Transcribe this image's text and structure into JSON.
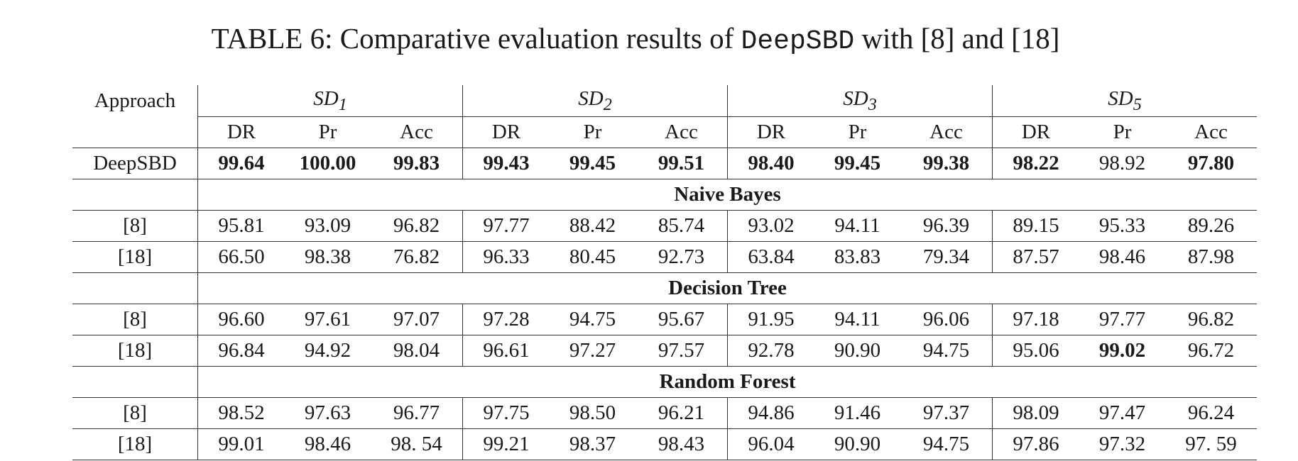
{
  "caption": {
    "prefix": "TABLE 6: Comparative evaluation results of",
    "mono": "DeepSBD",
    "suffix": "with [8] and [18]"
  },
  "header": {
    "approach": "Approach",
    "groups": [
      {
        "base": "SD",
        "sub": "1"
      },
      {
        "base": "SD",
        "sub": "2"
      },
      {
        "base": "SD",
        "sub": "3"
      },
      {
        "base": "SD",
        "sub": "5"
      }
    ],
    "metrics": [
      "DR",
      "Pr",
      "Acc"
    ]
  },
  "deepsbd": {
    "label": "DeepSBD",
    "values": [
      "99.64",
      "100.00",
      "99.83",
      "99.43",
      "99.45",
      "99.51",
      "98.40",
      "99.45",
      "99.38",
      "98.22",
      "98.92",
      "97.80"
    ],
    "bold": [
      true,
      true,
      true,
      true,
      true,
      true,
      true,
      true,
      true,
      true,
      false,
      true
    ]
  },
  "sections": [
    {
      "title": "Naive Bayes",
      "rows": [
        {
          "label": "[8]",
          "values": [
            "95.81",
            "93.09",
            "96.82",
            "97.77",
            "88.42",
            "85.74",
            "93.02",
            "94.11",
            "96.39",
            "89.15",
            "95.33",
            "89.26"
          ]
        },
        {
          "label": "[18]",
          "values": [
            "66.50",
            "98.38",
            "76.82",
            "96.33",
            "80.45",
            "92.73",
            "63.84",
            "83.83",
            "79.34",
            "87.57",
            "98.46",
            "87.98"
          ]
        }
      ]
    },
    {
      "title": "Decision Tree",
      "rows": [
        {
          "label": "[8]",
          "values": [
            "96.60",
            "97.61",
            "97.07",
            "97.28",
            "94.75",
            "95.67",
            "91.95",
            "94.11",
            "96.06",
            "97.18",
            "97.77",
            "96.82"
          ]
        },
        {
          "label": "[18]",
          "values": [
            "96.84",
            "94.92",
            "98.04",
            "96.61",
            "97.27",
            "97.57",
            "92.78",
            "90.90",
            "94.75",
            "95.06",
            "99.02",
            "96.72"
          ]
        }
      ]
    },
    {
      "title": "Random Forest",
      "rows": [
        {
          "label": "[8]",
          "values": [
            "98.52",
            "97.63",
            "96.77",
            "97.75",
            "98.50",
            "96.21",
            "94.86",
            "91.46",
            "97.37",
            "98.09",
            "97.47",
            "96.24"
          ]
        },
        {
          "label": "[18]",
          "values": [
            "99.01",
            "98.46",
            "98. 54",
            "99.21",
            "98.37",
            "98.43",
            "96.04",
            "90.90",
            "94.75",
            "97.86",
            "97.32",
            "97. 59"
          ]
        }
      ]
    }
  ]
}
